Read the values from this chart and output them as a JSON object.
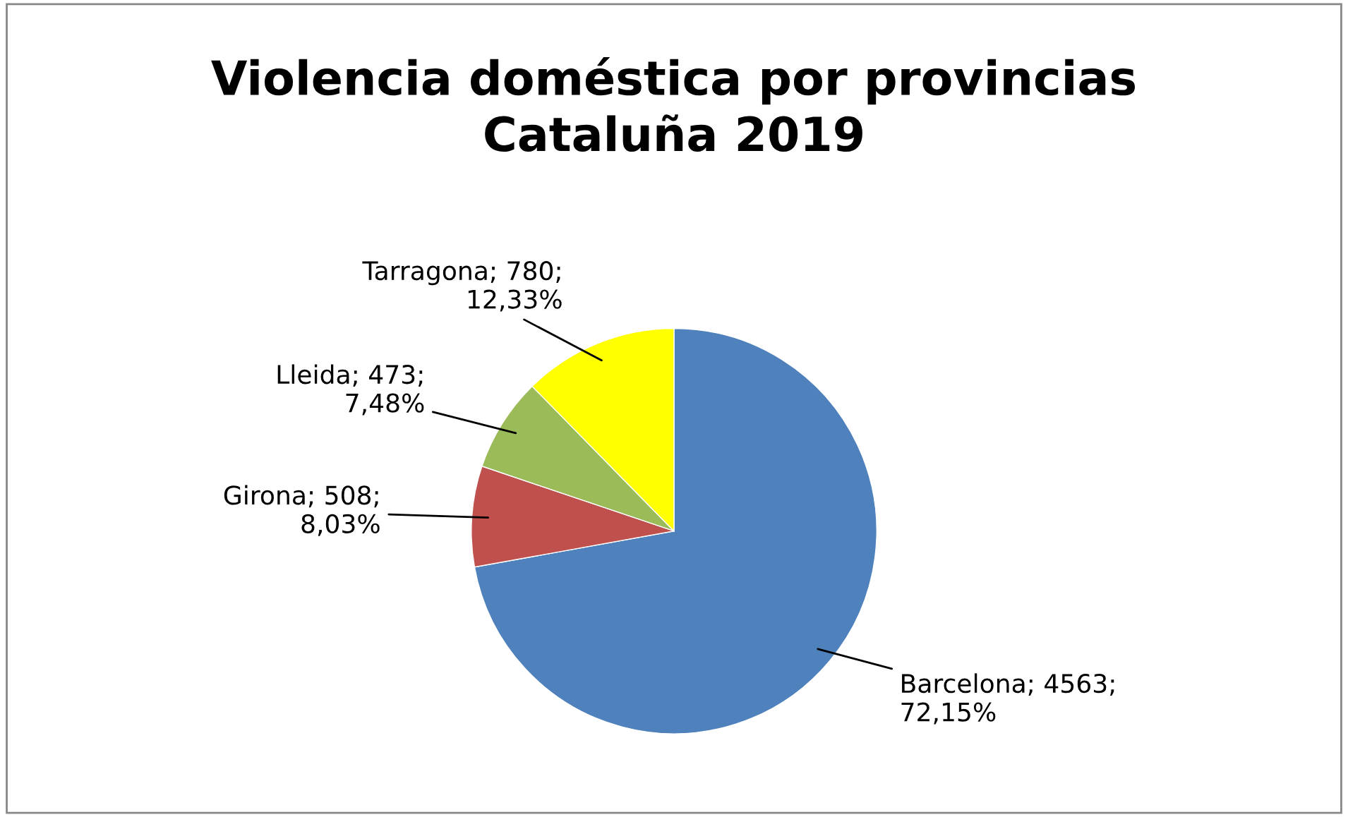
{
  "chart_data": {
    "type": "pie",
    "title": "Violencia doméstica por provincias\nCataluña 2019",
    "categories": [
      "Barcelona",
      "Girona",
      "Lleida",
      "Tarragona"
    ],
    "values": [
      4563,
      508,
      473,
      780
    ],
    "colors": [
      "#4f81bd",
      "#c0504d",
      "#9bbb59",
      "#ffff00"
    ],
    "value_labels": [
      "4563; 72,15%",
      "508; 8,03%",
      "473; 7,48%",
      "780; 12,33%"
    ],
    "legend": false
  }
}
